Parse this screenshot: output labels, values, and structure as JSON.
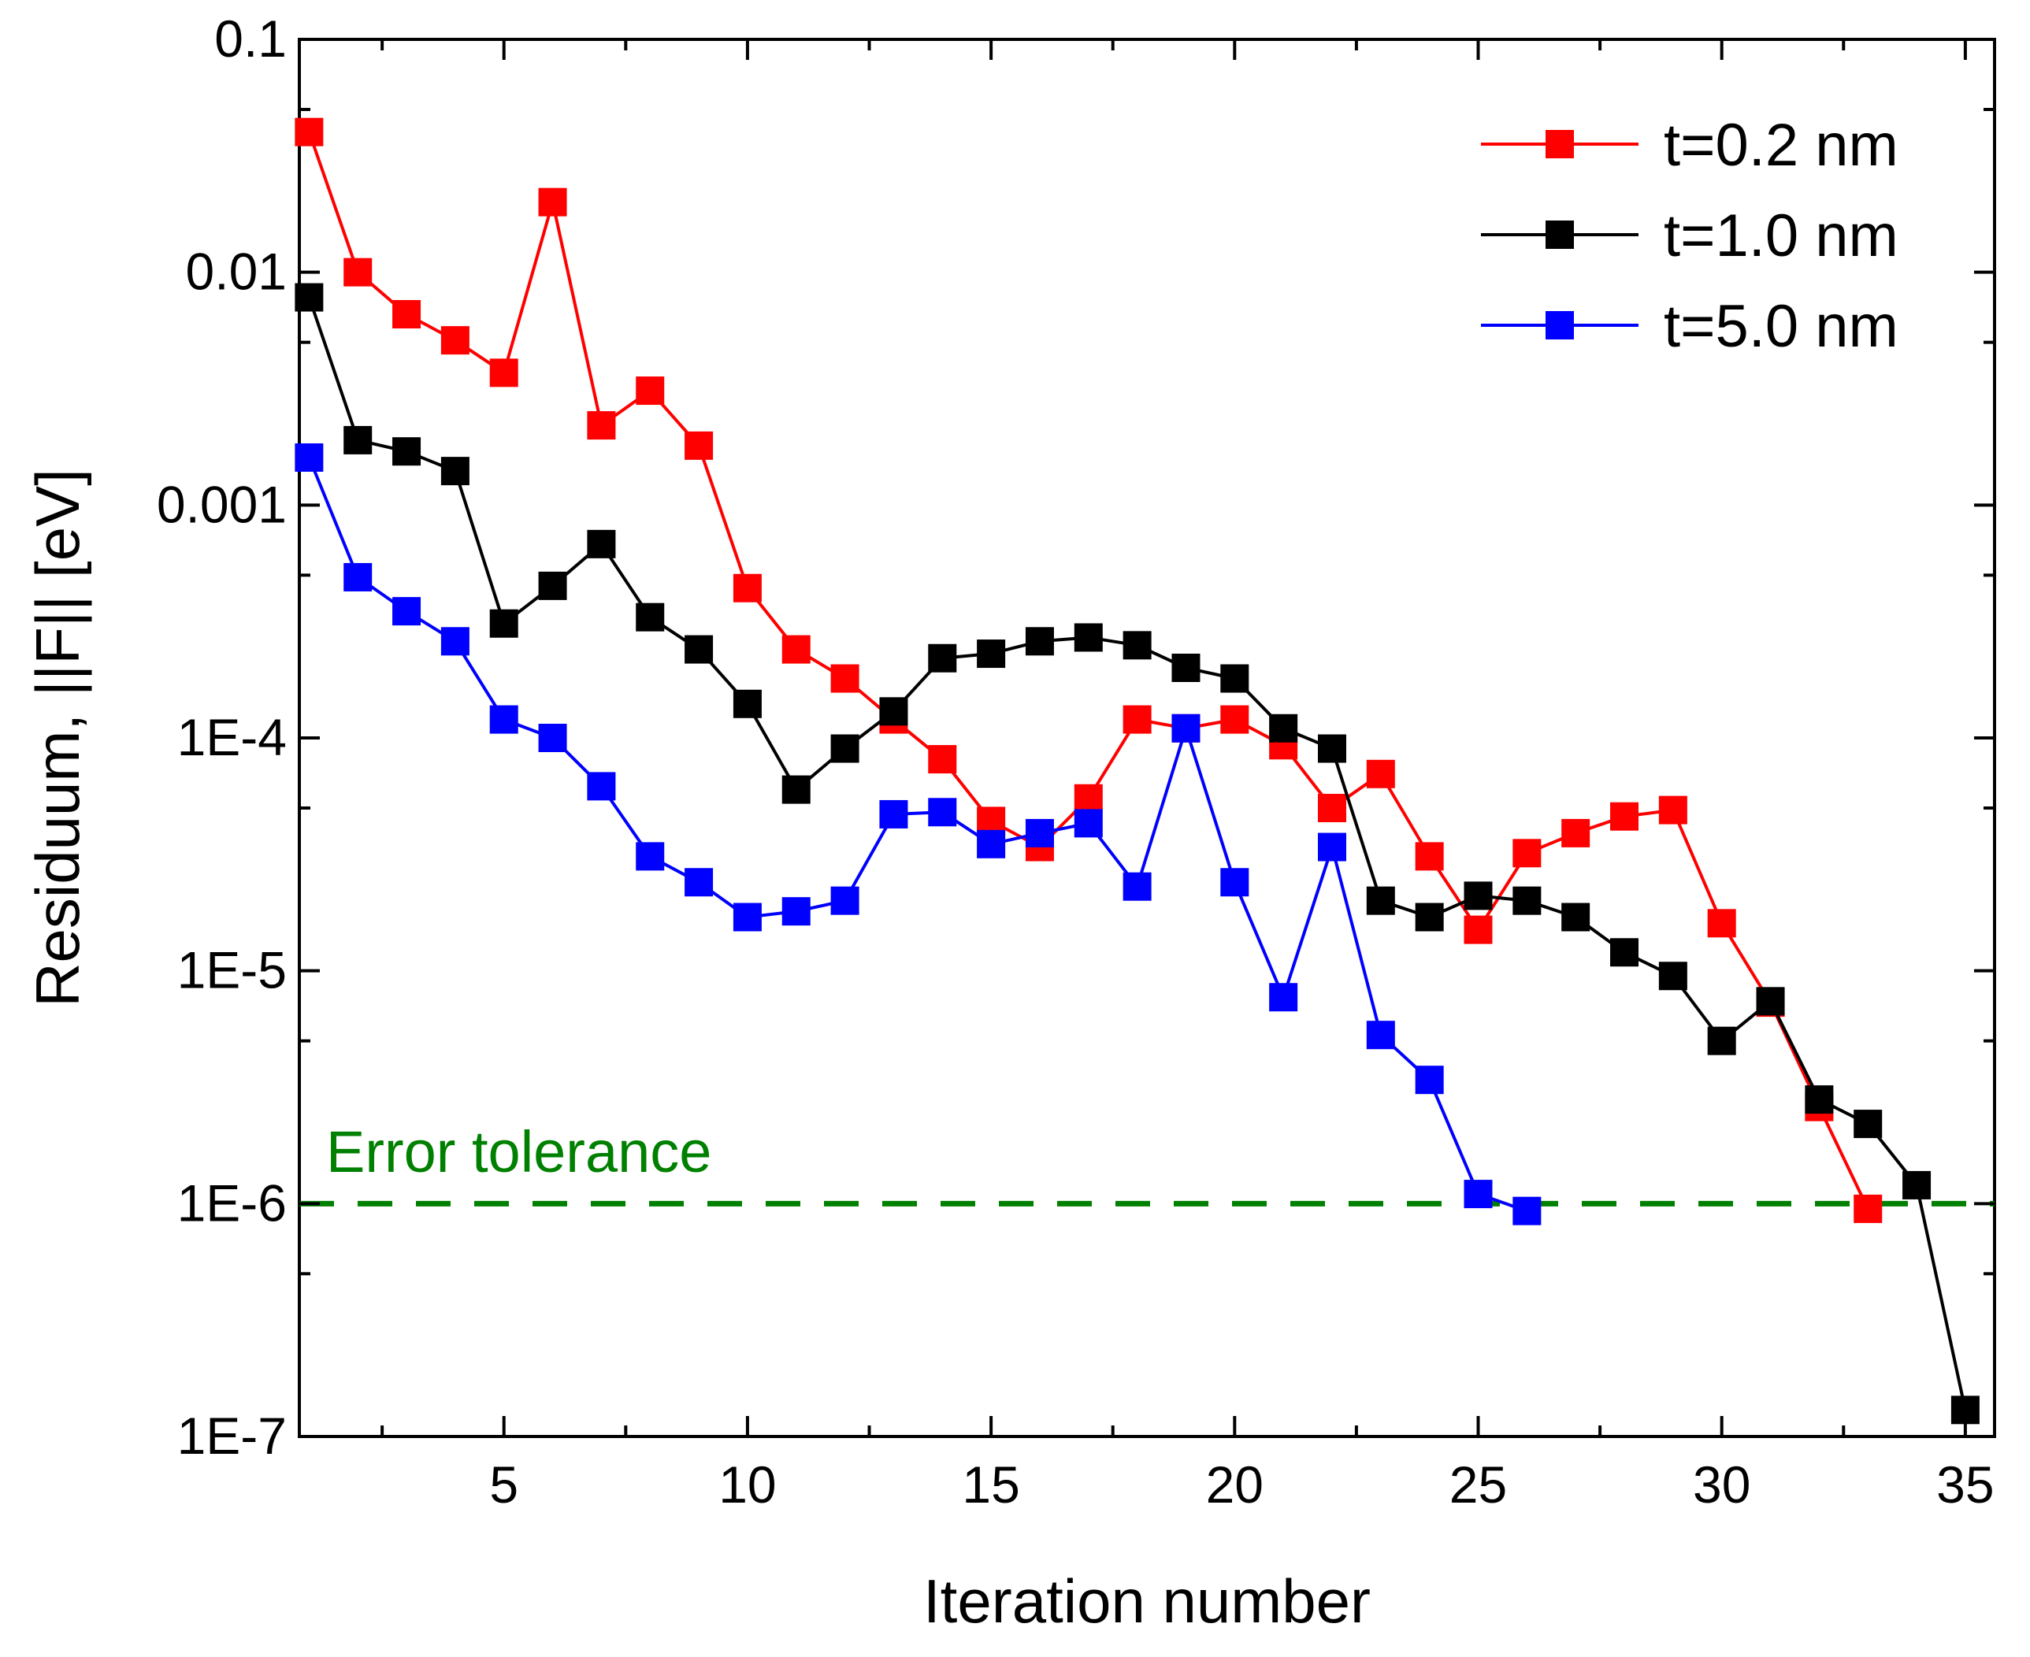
{
  "chart_data": {
    "type": "line",
    "title": "",
    "xlabel": "Iteration number",
    "ylabel": "Residuum, ||F|| [eV]",
    "y_scale": "log",
    "xlim": [
      0.8,
      35.6
    ],
    "ylim": [
      1e-07,
      0.1
    ],
    "x_ticks": [
      5,
      10,
      15,
      20,
      25,
      30,
      35
    ],
    "x_tick_labels": [
      "5",
      "10",
      "15",
      "20",
      "25",
      "30",
      "35"
    ],
    "y_ticks": [
      0.1,
      0.01,
      0.001,
      0.0001,
      1e-05,
      1e-06,
      1e-07
    ],
    "y_tick_labels": [
      "0.1",
      "0.01",
      "0.001",
      "1E-4",
      "1E-5",
      "1E-6",
      "1E-7"
    ],
    "legend_position": "top-right",
    "series": [
      {
        "name": "t=0.2 nm",
        "color": "#ff0000",
        "x": [
          1,
          2,
          3,
          4,
          5,
          6,
          7,
          8,
          9,
          10,
          11,
          12,
          13,
          14,
          15,
          16,
          17,
          18,
          19,
          20,
          21,
          22,
          23,
          24,
          25,
          26,
          27,
          28,
          29,
          30,
          31,
          32,
          33
        ],
        "values": [
          0.04,
          0.01,
          0.0066,
          0.0051,
          0.0037,
          0.02,
          0.0022,
          0.0031,
          0.0018,
          0.00044,
          0.00024,
          0.00018,
          0.00012,
          8.1e-05,
          4.4e-05,
          3.4e-05,
          5.5e-05,
          0.00012,
          0.00011,
          0.00012,
          9.3e-05,
          5e-05,
          7e-05,
          3.1e-05,
          1.5e-05,
          3.2e-05,
          3.9e-05,
          4.6e-05,
          4.9e-05,
          1.6e-05,
          7.3e-06,
          2.6e-06,
          9.5e-07
        ]
      },
      {
        "name": "t=1.0 nm",
        "color": "#000000",
        "x": [
          1,
          2,
          3,
          4,
          5,
          6,
          7,
          8,
          9,
          10,
          11,
          12,
          13,
          14,
          15,
          16,
          17,
          18,
          19,
          20,
          21,
          22,
          23,
          24,
          25,
          26,
          27,
          28,
          29,
          30,
          31,
          32,
          33,
          34,
          35
        ],
        "values": [
          0.0078,
          0.0019,
          0.0017,
          0.0014,
          0.00031,
          0.00045,
          0.00068,
          0.00033,
          0.00024,
          0.00014,
          6e-05,
          9e-05,
          0.00013,
          0.00022,
          0.00023,
          0.00026,
          0.00027,
          0.00025,
          0.0002,
          0.00018,
          0.00011,
          9e-05,
          2e-05,
          1.7e-05,
          2.1e-05,
          2e-05,
          1.7e-05,
          1.2e-05,
          9.5e-06,
          5e-06,
          7.4e-06,
          2.8e-06,
          2.2e-06,
          1.2e-06,
          1.3e-07
        ]
      },
      {
        "name": "t=5.0 nm",
        "color": "#0000ff",
        "x": [
          1,
          2,
          3,
          4,
          5,
          6,
          7,
          8,
          9,
          10,
          11,
          12,
          13,
          14,
          15,
          16,
          17,
          18,
          19,
          20,
          21,
          22,
          23,
          24,
          25,
          26
        ],
        "values": [
          0.0016,
          0.00049,
          0.00035,
          0.00026,
          0.00012,
          0.0001,
          6.2e-05,
          3.1e-05,
          2.4e-05,
          1.7e-05,
          1.8e-05,
          2e-05,
          4.7e-05,
          4.8e-05,
          3.5e-05,
          3.9e-05,
          4.3e-05,
          2.3e-05,
          0.00011,
          2.4e-05,
          7.7e-06,
          3.4e-05,
          5.3e-06,
          3.4e-06,
          1.1e-06,
          9.3e-07
        ]
      }
    ],
    "reference_line": {
      "label": "Error tolerance",
      "value": 1e-06,
      "color": "#008000",
      "style": "dashed"
    }
  }
}
